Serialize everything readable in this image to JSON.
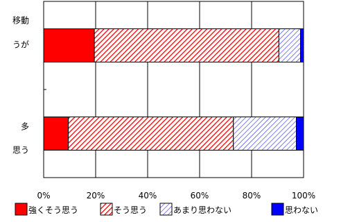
{
  "chart_data": {
    "type": "bar",
    "orientation": "horizontal",
    "stacked": true,
    "percent_scale": true,
    "categories": [
      "移動\nうが",
      "多\n思う"
    ],
    "series": [
      {
        "name": "強くそう思う",
        "values": [
          19.5,
          9.5
        ],
        "fill": "solid",
        "color": "#ff0000"
      },
      {
        "name": "そう思う",
        "values": [
          71,
          63.5
        ],
        "fill": "hatch",
        "color": "#ff0000"
      },
      {
        "name": "あまり思わない",
        "values": [
          8.3,
          24.2
        ],
        "fill": "hatch",
        "color": "#2a2aff"
      },
      {
        "name": "思わない",
        "values": [
          1.2,
          2.8
        ],
        "fill": "solid",
        "color": "#0000ff"
      }
    ],
    "xlim": [
      0,
      100
    ],
    "x_ticks": [
      "0%",
      "20%",
      "40%",
      "60%",
      "80%",
      "100%"
    ],
    "grid": true,
    "legend_position": "bottom"
  }
}
